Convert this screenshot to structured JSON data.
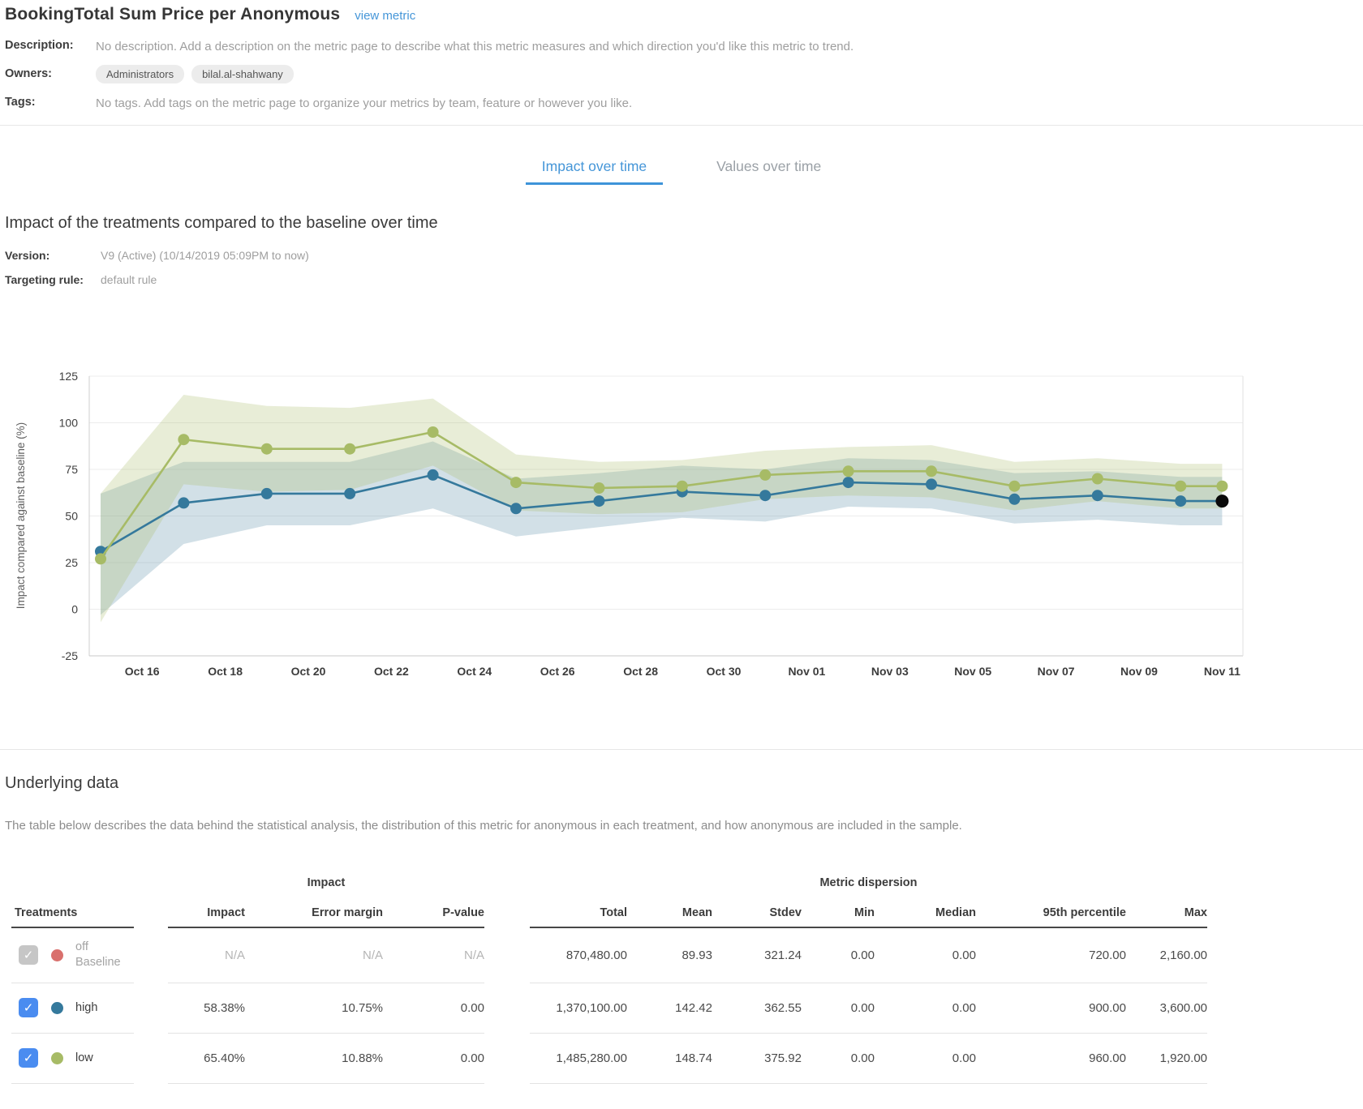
{
  "header": {
    "title": "BookingTotal Sum Price per Anonymous",
    "link": "view metric"
  },
  "meta": {
    "description_label": "Description:",
    "description": "No description. Add a description on the metric page to describe what this metric measures and which direction you'd like this metric to trend.",
    "owners_label": "Owners:",
    "owners": [
      "Administrators",
      "bilal.al-shahwany"
    ],
    "tags_label": "Tags:",
    "tags": "No tags. Add tags on the metric page to organize your metrics by team, feature or however you like."
  },
  "tabs": [
    {
      "label": "Impact over time",
      "active": true
    },
    {
      "label": "Values over time",
      "active": false
    }
  ],
  "impact_section": {
    "title": "Impact of the treatments compared to the baseline over time",
    "version_label": "Version:",
    "version": "V9 (Active) (10/14/2019 05:09PM to now)",
    "targeting_label": "Targeting rule:",
    "targeting": "default rule"
  },
  "chart_data": {
    "type": "line",
    "title": "Impact of the treatments compared to the baseline over time",
    "ylabel": "Impact compared against baseline (%)",
    "ylim": [
      -25,
      125
    ],
    "yticks": [
      125,
      100,
      75,
      50,
      25,
      0,
      -25
    ],
    "grid": true,
    "legend_position": "none",
    "x_labels": [
      "Oct 16",
      "Oct 18",
      "Oct 20",
      "Oct 22",
      "Oct 24",
      "Oct 26",
      "Oct 28",
      "Oct 30",
      "Nov 01",
      "Nov 03",
      "Nov 05",
      "Nov 07",
      "Nov 09",
      "Nov 11"
    ],
    "x_label_days": [
      1,
      3,
      5,
      7,
      9,
      11,
      13,
      15,
      17,
      19,
      21,
      23,
      25,
      27
    ],
    "days": [
      0,
      2,
      4,
      6,
      8,
      10,
      12,
      14,
      16,
      18,
      20,
      22,
      24,
      26,
      27
    ],
    "dates": [
      "Oct 15",
      "Oct 17",
      "Oct 19",
      "Oct 21",
      "Oct 23",
      "Oct 25",
      "Oct 27",
      "Oct 29",
      "Oct 31",
      "Nov 02",
      "Nov 04",
      "Nov 06",
      "Nov 08",
      "Nov 10",
      "Nov 11"
    ],
    "series": [
      {
        "name": "high",
        "color": "#35799c",
        "band_color": "rgba(88,140,168,0.27)",
        "values": [
          31,
          57,
          62,
          62,
          72,
          54,
          58,
          63,
          61,
          68,
          67,
          59,
          61,
          58,
          58
        ],
        "upper": [
          62,
          79,
          79,
          79,
          90,
          70,
          73,
          77,
          75,
          81,
          80,
          73,
          74,
          71,
          71
        ],
        "lower": [
          -3,
          35,
          45,
          45,
          54,
          39,
          44,
          49,
          47,
          55,
          54,
          46,
          48,
          45,
          45
        ]
      },
      {
        "name": "low",
        "color": "#a7bb66",
        "band_color": "rgba(172,190,110,0.28)",
        "values": [
          27,
          91,
          86,
          86,
          95,
          68,
          65,
          66,
          72,
          74,
          74,
          66,
          70,
          66,
          66
        ],
        "upper": [
          62,
          115,
          109,
          108,
          113,
          83,
          79,
          80,
          85,
          87,
          88,
          79,
          81,
          78,
          78
        ],
        "lower": [
          -7,
          67,
          63,
          64,
          77,
          53,
          51,
          52,
          59,
          61,
          60,
          53,
          58,
          54,
          54
        ]
      }
    ],
    "latest_marker_color": "#0a0a0a"
  },
  "underlying": {
    "title": "Underlying data",
    "description": "The table below describes the data behind the statistical analysis, the distribution of this metric for anonymous in each treatment, and how anonymous are included in the sample.",
    "table": {
      "treatments_header": "Treatments",
      "impact_group": "Impact",
      "dispersion_group": "Metric dispersion",
      "impact_cols": [
        "Impact",
        "Error margin",
        "P-value"
      ],
      "dispersion_cols": [
        "Total",
        "Mean",
        "Stdev",
        "Min",
        "Median",
        "95th percentile",
        "Max"
      ],
      "rows": [
        {
          "name": "off",
          "sub": "Baseline",
          "dot": "#d9706d",
          "checked": true,
          "disabled": true,
          "impact": [
            "N/A",
            "N/A",
            "N/A"
          ],
          "dispersion": [
            "870,480.00",
            "89.93",
            "321.24",
            "0.00",
            "0.00",
            "720.00",
            "2,160.00"
          ]
        },
        {
          "name": "high",
          "sub": "",
          "dot": "#35799c",
          "checked": true,
          "disabled": false,
          "impact": [
            "58.38%",
            "10.75%",
            "0.00"
          ],
          "dispersion": [
            "1,370,100.00",
            "142.42",
            "362.55",
            "0.00",
            "0.00",
            "900.00",
            "3,600.00"
          ]
        },
        {
          "name": "low",
          "sub": "",
          "dot": "#a7bb66",
          "checked": true,
          "disabled": false,
          "impact": [
            "65.40%",
            "10.88%",
            "0.00"
          ],
          "dispersion": [
            "1,485,280.00",
            "148.74",
            "375.92",
            "0.00",
            "0.00",
            "960.00",
            "1,920.00"
          ]
        }
      ]
    }
  }
}
